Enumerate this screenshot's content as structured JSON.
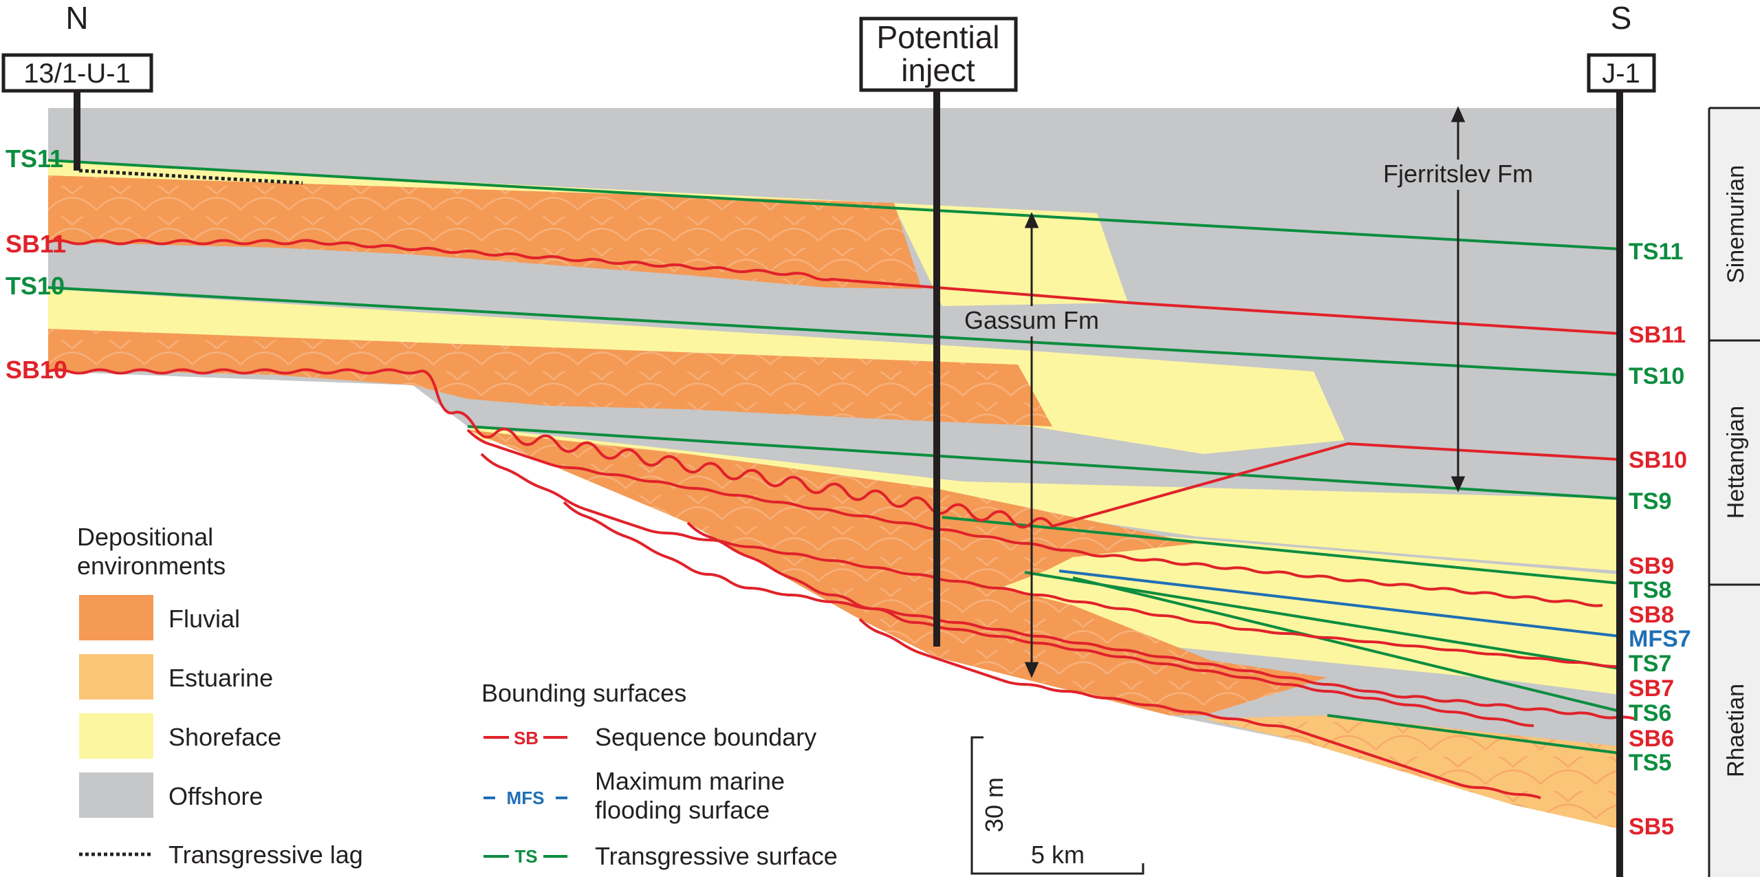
{
  "compass": {
    "north": "N",
    "south": "S"
  },
  "wells": {
    "left": "13/1-U-1",
    "middle_line1": "Potential",
    "middle_line2": "inject",
    "right": "J-1"
  },
  "stages": [
    "Sinemurian",
    "Hettangian",
    "Rhaetian"
  ],
  "formations": {
    "upper": "Fjerritslev Fm",
    "lower": "Gassum Fm"
  },
  "left_labels": [
    "TS11",
    "SB11",
    "TS10",
    "SB10"
  ],
  "right_labels": [
    "TS11",
    "SB11",
    "TS10",
    "SB10",
    "TS9",
    "SB9",
    "TS8",
    "SB8",
    "MFS7",
    "TS7",
    "SB7",
    "TS6",
    "SB6",
    "TS5",
    "SB5"
  ],
  "legend_env": {
    "title_line1": "Depositional",
    "title_line2": "environments",
    "items": [
      {
        "label": "Fluvial",
        "color": "#f49a55"
      },
      {
        "label": "Estuarine",
        "color": "#fbc577"
      },
      {
        "label": "Shoreface",
        "color": "#fdf6a0"
      },
      {
        "label": "Offshore",
        "color": "#c6c7c9"
      }
    ],
    "lag_label": "Transgressive lag"
  },
  "legend_surf": {
    "title": "Bounding surfaces",
    "items": [
      {
        "key": "SB",
        "label": "Sequence boundary",
        "color": "#e0222a"
      },
      {
        "key": "MFS",
        "label_line1": "Maximum marine",
        "label_line2": "flooding surface",
        "color": "#1f6fb5"
      },
      {
        "key": "TS",
        "label": "Transgressive surface",
        "color": "#0c8d3f"
      }
    ]
  },
  "scale": {
    "vertical": "30 m",
    "horizontal": "5 km"
  },
  "colors": {
    "fluvial": "#f49a55",
    "estuarine": "#fbc577",
    "shoreface": "#fdf6a0",
    "offshore": "#c6c7c9",
    "sb": "#e0222a",
    "ts": "#0c8d3f",
    "mfs": "#1f6fb5"
  }
}
